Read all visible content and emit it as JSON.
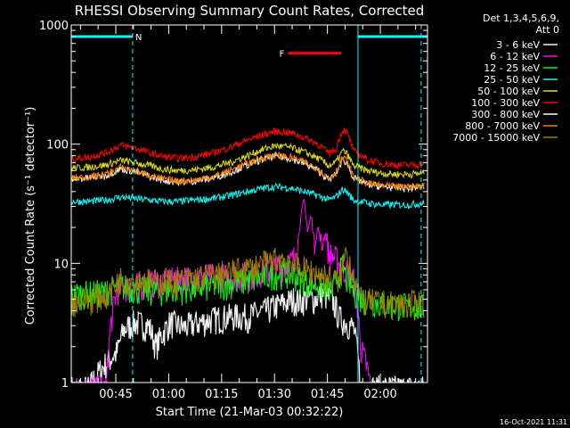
{
  "chart_data": {
    "type": "line",
    "title": "RHESSI Observing Summary Count Rates, Corrected",
    "xlabel": "Start Time (21-Mar-03 00:32:22)",
    "ylabel": "Corrected Count Rate (s⁻¹ detector⁻¹)",
    "yscale": "log",
    "ylim": [
      1,
      1000
    ],
    "xlim_minutes_after_0032": [
      0,
      101
    ],
    "y_ticks": [
      "1",
      "10",
      "100",
      "1000"
    ],
    "x_ticks": [
      {
        "label": "00:45",
        "t": 12.63
      },
      {
        "label": "01:00",
        "t": 27.63
      },
      {
        "label": "01:15",
        "t": 42.63
      },
      {
        "label": "01:30",
        "t": 57.63
      },
      {
        "label": "01:45",
        "t": 72.63
      },
      {
        "label": "02:00",
        "t": 87.63
      }
    ],
    "legend_header": [
      "Det 1,3,4,5,6,9,",
      "Att 0"
    ],
    "legend_placement": "right",
    "series": [
      {
        "name": "3 - 6 keV",
        "color": "#f0f0f0",
        "t": [
          0,
          5,
          13,
          15,
          18,
          22,
          24,
          28,
          32,
          36,
          40,
          45,
          50,
          55,
          58,
          60,
          63,
          65,
          67,
          69,
          71,
          74,
          76,
          78,
          80,
          82,
          85,
          90,
          95,
          100
        ],
        "values": [
          0.9,
          0.9,
          1.8,
          2.8,
          3.2,
          3.0,
          2.0,
          3.2,
          2.9,
          3.2,
          3.4,
          3.6,
          3.6,
          4.0,
          4.4,
          4.6,
          5.0,
          4.8,
          5.2,
          5.0,
          5.6,
          5.0,
          3.5,
          3.2,
          2.9,
          0.9,
          0.9,
          0.9,
          0.9,
          0.9
        ]
      },
      {
        "name": "6 - 12 keV",
        "color": "#ff00ff",
        "t": [
          0,
          10,
          13,
          15,
          20,
          25,
          30,
          35,
          40,
          45,
          50,
          55,
          58,
          60,
          62,
          64,
          66,
          67,
          68,
          69,
          70,
          71,
          72,
          73,
          75,
          77,
          79,
          80,
          82,
          85
        ],
        "values": [
          0.9,
          0.9,
          6.0,
          6.3,
          6.6,
          7.0,
          7.4,
          7.6,
          7.8,
          7.8,
          8.0,
          8.6,
          9.2,
          9.6,
          10.0,
          12.0,
          34.0,
          18.0,
          25.0,
          14.0,
          20.0,
          13.0,
          18.0,
          12.0,
          11.0,
          9.0,
          8.0,
          7.5,
          2.0,
          0.9
        ]
      },
      {
        "name": "12 - 25 keV",
        "color": "#00ff00",
        "t": [
          0,
          5,
          10,
          14,
          20,
          25,
          30,
          35,
          40,
          45,
          50,
          55,
          60,
          63,
          66,
          70,
          74,
          77,
          78,
          80,
          82,
          85,
          90,
          95,
          100
        ],
        "values": [
          5.5,
          5.6,
          5.8,
          6.5,
          6.0,
          5.9,
          6.1,
          6.2,
          6.5,
          6.8,
          7.2,
          7.8,
          8.3,
          8.0,
          7.2,
          6.6,
          6.0,
          9.5,
          7.5,
          6.0,
          5.2,
          4.8,
          4.5,
          4.4,
          4.3
        ]
      },
      {
        "name": "25 - 50 keV",
        "color": "#00ffff",
        "t": [
          0,
          5,
          10,
          14,
          18,
          22,
          26,
          30,
          35,
          40,
          45,
          50,
          55,
          58,
          62,
          66,
          70,
          73,
          75,
          77,
          78,
          80,
          84,
          88,
          92,
          96,
          100
        ],
        "values": [
          33,
          33,
          34,
          36,
          35,
          34,
          33,
          33,
          34,
          35,
          37,
          40,
          43,
          44,
          43,
          40,
          37,
          34,
          36,
          42,
          40,
          34,
          32,
          31,
          31,
          31,
          32
        ]
      },
      {
        "name": "50 - 100 keV",
        "color": "#e0e000",
        "t": [
          0,
          5,
          10,
          14,
          18,
          22,
          26,
          30,
          35,
          40,
          45,
          50,
          55,
          58,
          62,
          66,
          70,
          73,
          75,
          77,
          78,
          80,
          84,
          88,
          92,
          96,
          100
        ],
        "values": [
          63,
          64,
          67,
          73,
          70,
          66,
          62,
          60,
          61,
          64,
          70,
          80,
          92,
          97,
          94,
          86,
          76,
          66,
          70,
          88,
          84,
          66,
          60,
          57,
          56,
          56,
          57
        ]
      },
      {
        "name": "100 - 300 keV",
        "color": "#ff0000",
        "t": [
          0,
          5,
          10,
          14,
          18,
          22,
          26,
          30,
          35,
          40,
          45,
          50,
          55,
          58,
          62,
          66,
          70,
          73,
          75,
          77,
          78,
          80,
          84,
          88,
          92,
          96,
          100
        ],
        "values": [
          75,
          78,
          85,
          98,
          93,
          85,
          79,
          76,
          78,
          84,
          94,
          108,
          122,
          128,
          125,
          114,
          100,
          84,
          90,
          132,
          128,
          88,
          74,
          69,
          67,
          67,
          68
        ]
      },
      {
        "name": "300 - 800 keV",
        "color": "#ffffff",
        "t": [
          0,
          5,
          10,
          14,
          18,
          22,
          26,
          30,
          35,
          40,
          45,
          50,
          55,
          58,
          62,
          66,
          70,
          73,
          75,
          77,
          78,
          80,
          84,
          88,
          92,
          96,
          100
        ],
        "values": [
          51,
          52,
          55,
          62,
          59,
          54,
          50,
          48,
          49,
          52,
          58,
          67,
          76,
          79,
          76,
          69,
          60,
          50,
          56,
          74,
          70,
          52,
          46,
          44,
          43,
          43,
          44
        ]
      },
      {
        "name": "800 - 7000 keV",
        "color": "#ff8000",
        "t": [
          0,
          5,
          10,
          14,
          18,
          22,
          26,
          30,
          35,
          40,
          45,
          50,
          55,
          58,
          62,
          66,
          70,
          73,
          75,
          77,
          78,
          80,
          84,
          88,
          92,
          96,
          100
        ],
        "values": [
          52,
          53,
          56,
          64,
          60,
          55,
          51,
          49,
          50,
          53,
          60,
          69,
          78,
          81,
          78,
          71,
          62,
          51,
          58,
          78,
          73,
          53,
          47,
          45,
          44,
          44,
          45
        ]
      },
      {
        "name": "7000 - 15000 keV",
        "color": "#a08000",
        "t": [
          0,
          5,
          10,
          14,
          20,
          25,
          30,
          35,
          40,
          45,
          50,
          55,
          58,
          60,
          62,
          64,
          66,
          70,
          74,
          76,
          78,
          80,
          82,
          85,
          90,
          95,
          100
        ],
        "values": [
          4.8,
          5.0,
          5.5,
          7.4,
          7.2,
          7.0,
          7.2,
          7.6,
          8.0,
          8.4,
          9.0,
          10.0,
          10.8,
          11.0,
          10.6,
          9.4,
          9.0,
          8.2,
          7.4,
          7.0,
          12.5,
          8.0,
          5.0,
          4.8,
          4.6,
          4.6,
          4.7
        ]
      }
    ],
    "annotations": [
      {
        "label": "N",
        "color": "#00ffff",
        "bar_t": [
          0,
          17.4
        ],
        "y": 800
      },
      {
        "label": "F",
        "color": "#ff0000",
        "bar_t": [
          61.5,
          76.5
        ],
        "y": 580
      },
      {
        "label": "",
        "color": "#00ffff",
        "bar_t": [
          81.3,
          101
        ],
        "y": 800
      }
    ],
    "vertical_lines": [
      {
        "t": 0,
        "color": "#00ffff",
        "style": "solid"
      },
      {
        "t": 17.4,
        "color": "#00ffff",
        "style": "dashed"
      },
      {
        "t": 81.3,
        "color": "#00ffff",
        "style": "solid"
      },
      {
        "t": 99.2,
        "color": "#00ffff",
        "style": "dashed"
      }
    ]
  },
  "footer_timestamp": "16-Oct-2021 11:31"
}
